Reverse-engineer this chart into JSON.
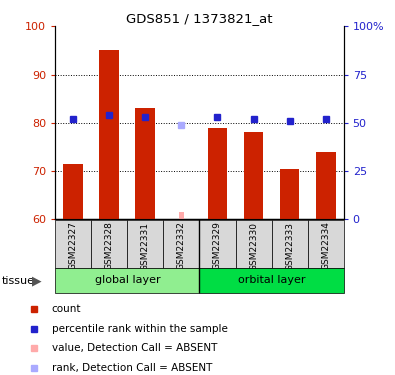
{
  "title": "GDS851 / 1373821_at",
  "samples": [
    "GSM22327",
    "GSM22328",
    "GSM22331",
    "GSM22332",
    "GSM22329",
    "GSM22330",
    "GSM22333",
    "GSM22334"
  ],
  "bar_values": [
    71.5,
    95.0,
    83.0,
    null,
    79.0,
    78.0,
    70.5,
    74.0
  ],
  "bar_absent_values": [
    null,
    null,
    null,
    61.5,
    null,
    null,
    null,
    null
  ],
  "rank_values": [
    52,
    54,
    53,
    null,
    53,
    52,
    51,
    52
  ],
  "rank_absent_values": [
    null,
    null,
    null,
    49,
    null,
    null,
    null,
    null
  ],
  "bar_color": "#cc2200",
  "rank_color": "#2222cc",
  "bar_absent_color": "#ffaaaa",
  "rank_absent_color": "#aaaaff",
  "ylim_left": [
    60,
    100
  ],
  "ylim_right": [
    0,
    100
  ],
  "yticks_left": [
    60,
    70,
    80,
    90,
    100
  ],
  "yticks_right": [
    0,
    25,
    50,
    75,
    100
  ],
  "ytick_labels_right": [
    "0",
    "25",
    "50",
    "75",
    "100%"
  ],
  "group_info": [
    {
      "name": "global layer",
      "start": 0,
      "end": 3,
      "color": "#90ee90"
    },
    {
      "name": "orbital layer",
      "start": 4,
      "end": 7,
      "color": "#00dd44"
    }
  ],
  "legend_items": [
    {
      "label": "count",
      "color": "#cc2200",
      "msize": 5
    },
    {
      "label": "percentile rank within the sample",
      "color": "#2222cc",
      "msize": 5
    },
    {
      "label": "value, Detection Call = ABSENT",
      "color": "#ffaaaa",
      "msize": 5
    },
    {
      "label": "rank, Detection Call = ABSENT",
      "color": "#aaaaff",
      "msize": 5
    }
  ],
  "bar_width": 0.55,
  "rank_marker_size": 5,
  "grid_lines": [
    70,
    80,
    90
  ],
  "tissue_label": "tissue"
}
